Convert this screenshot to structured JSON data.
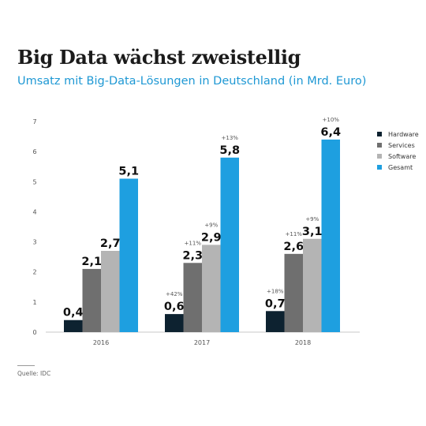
{
  "title": "Big Data wächst zweistellig",
  "subtitle": "Umsatz mit Big-Data-Lösungen in Deutschland (in Mrd. Euro)",
  "source": "Quelle: IDC",
  "colors": {
    "Hardware": "#0d2230",
    "Services": "#6f6f6f",
    "Software": "#b4b4b4",
    "Gesamt": "#1e9fe0"
  },
  "chart_data": {
    "type": "bar",
    "title": "Big Data wächst zweistellig",
    "subtitle": "Umsatz mit Big-Data-Lösungen in Deutschland (in Mrd. Euro)",
    "categories": [
      "2016",
      "2017",
      "2018"
    ],
    "ylim": [
      0,
      7
    ],
    "yticks": [
      0,
      1,
      2,
      3,
      4,
      5,
      6,
      7
    ],
    "grid": false,
    "legend_position": "right",
    "series": [
      {
        "name": "Hardware",
        "values": [
          0.4,
          0.6,
          0.7
        ],
        "labels": [
          "0,4",
          "0,6",
          "0,7"
        ],
        "growth": [
          "",
          "+42%",
          "+18%"
        ]
      },
      {
        "name": "Services",
        "values": [
          2.1,
          2.3,
          2.6
        ],
        "labels": [
          "2,1",
          "2,3",
          "2,6"
        ],
        "growth": [
          "",
          "+11%",
          "+11%"
        ]
      },
      {
        "name": "Software",
        "values": [
          2.7,
          2.9,
          3.1
        ],
        "labels": [
          "2,7",
          "2,9",
          "3,1"
        ],
        "growth": [
          "",
          "+9%",
          "+9%"
        ]
      },
      {
        "name": "Gesamt",
        "values": [
          5.1,
          5.8,
          6.4
        ],
        "labels": [
          "5,1",
          "5,8",
          "6,4"
        ],
        "growth": [
          "",
          "+13%",
          "+10%"
        ]
      }
    ]
  }
}
